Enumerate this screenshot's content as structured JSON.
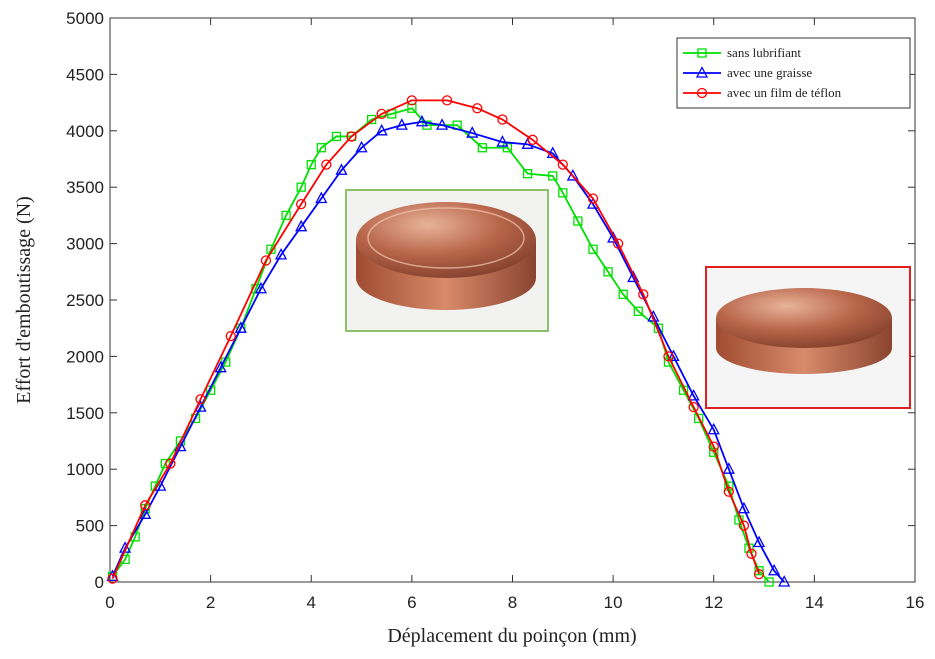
{
  "chart_data": {
    "type": "line",
    "xlabel": "Déplacement du poinçon (mm)",
    "ylabel": "Effort  d'emboutissage  (N)",
    "xlim": [
      0,
      16
    ],
    "xticks": [
      0,
      2,
      4,
      6,
      8,
      10,
      12,
      14,
      16
    ],
    "ylim": [
      0,
      5000
    ],
    "yticks": [
      0,
      500,
      1000,
      1500,
      2000,
      2500,
      3000,
      3500,
      4000,
      4500,
      5000
    ],
    "legend": "upper right",
    "series": [
      {
        "name": "sans lubrifiant",
        "color": "#00e000",
        "marker": "square",
        "x": [
          0.05,
          0.3,
          0.5,
          0.7,
          0.9,
          1.1,
          1.4,
          1.7,
          2.0,
          2.3,
          2.6,
          2.9,
          3.2,
          3.5,
          3.8,
          4.0,
          4.2,
          4.5,
          4.8,
          5.2,
          5.6,
          6.0,
          6.3,
          6.9,
          7.4,
          7.9,
          8.3,
          8.8,
          9.0,
          9.3,
          9.6,
          9.9,
          10.2,
          10.5,
          10.9,
          11.1,
          11.4,
          11.7,
          12.0,
          12.3,
          12.5,
          12.7,
          12.9,
          13.1
        ],
        "values": [
          50,
          200,
          400,
          650,
          850,
          1050,
          1250,
          1450,
          1700,
          1950,
          2250,
          2600,
          2950,
          3250,
          3500,
          3700,
          3850,
          3950,
          3950,
          4100,
          4150,
          4200,
          4050,
          4050,
          3850,
          3850,
          3620,
          3600,
          3450,
          3200,
          2950,
          2750,
          2550,
          2400,
          2250,
          1950,
          1700,
          1450,
          1150,
          850,
          550,
          300,
          100,
          0
        ]
      },
      {
        "name": "avec une graisse",
        "color": "#0000ff",
        "marker": "triangle",
        "x": [
          0.05,
          0.3,
          0.7,
          1.0,
          1.4,
          1.8,
          2.2,
          2.6,
          3.0,
          3.4,
          3.8,
          4.2,
          4.6,
          5.0,
          5.4,
          5.8,
          6.2,
          6.6,
          7.2,
          7.8,
          8.3,
          8.8,
          9.2,
          9.6,
          10.0,
          10.4,
          10.8,
          11.2,
          11.6,
          12.0,
          12.3,
          12.6,
          12.9,
          13.2,
          13.4
        ],
        "values": [
          50,
          300,
          600,
          850,
          1200,
          1550,
          1900,
          2250,
          2600,
          2900,
          3150,
          3400,
          3650,
          3850,
          4000,
          4050,
          4080,
          4050,
          3980,
          3900,
          3880,
          3800,
          3600,
          3350,
          3050,
          2700,
          2350,
          2000,
          1650,
          1350,
          1000,
          650,
          350,
          100,
          0
        ]
      },
      {
        "name": "avec un film de téflon",
        "color": "#ff0000",
        "marker": "circle",
        "x": [
          0.05,
          0.7,
          1.2,
          1.8,
          2.4,
          3.1,
          3.8,
          4.3,
          4.8,
          5.4,
          6.0,
          6.7,
          7.3,
          7.8,
          8.4,
          9.0,
          9.6,
          10.1,
          10.6,
          11.1,
          11.6,
          12.0,
          12.3,
          12.6,
          12.75,
          12.9
        ],
        "values": [
          30,
          680,
          1050,
          1620,
          2180,
          2850,
          3350,
          3700,
          3950,
          4150,
          4270,
          4270,
          4200,
          4100,
          3920,
          3700,
          3400,
          3000,
          2550,
          2000,
          1550,
          1200,
          800,
          500,
          250,
          70
        ]
      }
    ]
  }
}
